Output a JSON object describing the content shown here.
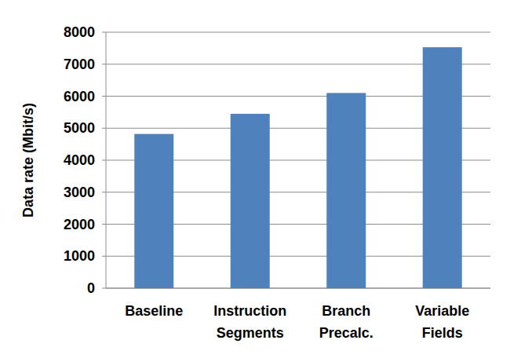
{
  "chart_data": {
    "type": "bar",
    "ylabel": "Data rate (Mbit/s)",
    "categories": [
      "Baseline",
      "Instruction Segments",
      "Branch Precalc.",
      "Variable Fields"
    ],
    "values": [
      4820,
      5450,
      6100,
      7530
    ],
    "color": "#4f81bd",
    "ylim": [
      0,
      8000
    ],
    "yticks": [
      0,
      1000,
      2000,
      3000,
      4000,
      5000,
      6000,
      7000,
      8000
    ],
    "grid": true
  }
}
